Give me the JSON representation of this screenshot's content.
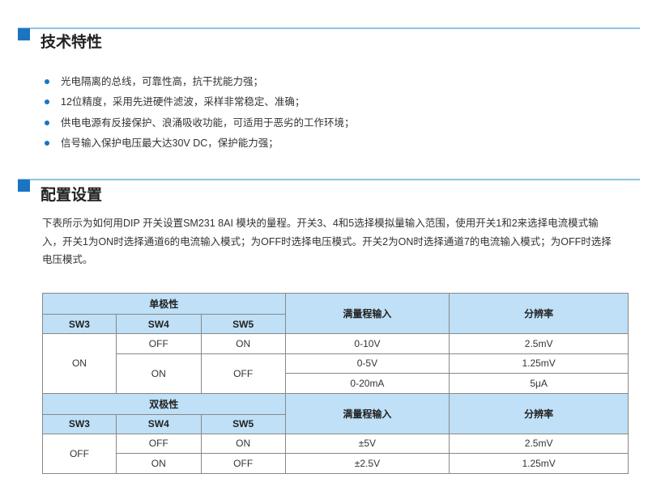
{
  "section1": {
    "title": "技术特性",
    "bullets": [
      "光电隔离的总线，可靠性高，抗干扰能力强；",
      "12位精度，采用先进硬件滤波，采样非常稳定、准确；",
      "供电电源有反接保护、浪涌吸收功能，可适用于恶劣的工作环境；",
      "信号输入保护电压最大达30V DC，保护能力强；"
    ]
  },
  "section2": {
    "title": "配置设置",
    "paragraph": "下表所示为如何用DIP 开关设置SM231 8AI 模块的量程。开关3、4和5选择模拟量输入范围，使用开关1和2来选择电流模式输入，开关1为ON时选择通道6的电流输入模式；为OFF时选择电压模式。开关2为ON时选择通道7的电流输入模式；为OFF时选择电压模式。"
  },
  "table": {
    "unipolar": {
      "group": "单极性",
      "cols": [
        "SW3",
        "SW4",
        "SW5"
      ],
      "range": "满量程输入",
      "resolution": "分辨率",
      "sw3": "ON",
      "rows": [
        {
          "sw4": "OFF",
          "sw5": "ON",
          "range": "0-10V",
          "res": "2.5mV"
        },
        {
          "sw4": "ON",
          "sw5": "OFF",
          "range": "0-5V",
          "res": "1.25mV"
        },
        {
          "range": "0-20mA",
          "res": "5μA"
        }
      ]
    },
    "bipolar": {
      "group": "双极性",
      "cols": [
        "SW3",
        "SW4",
        "SW5"
      ],
      "range": "满量程输入",
      "resolution": "分辨率",
      "sw3": "OFF",
      "rows": [
        {
          "sw4": "OFF",
          "sw5": "ON",
          "range": "±5V",
          "res": "2.5mV"
        },
        {
          "sw4": "ON",
          "sw5": "OFF",
          "range": "±2.5V",
          "res": "1.25mV"
        }
      ]
    }
  }
}
